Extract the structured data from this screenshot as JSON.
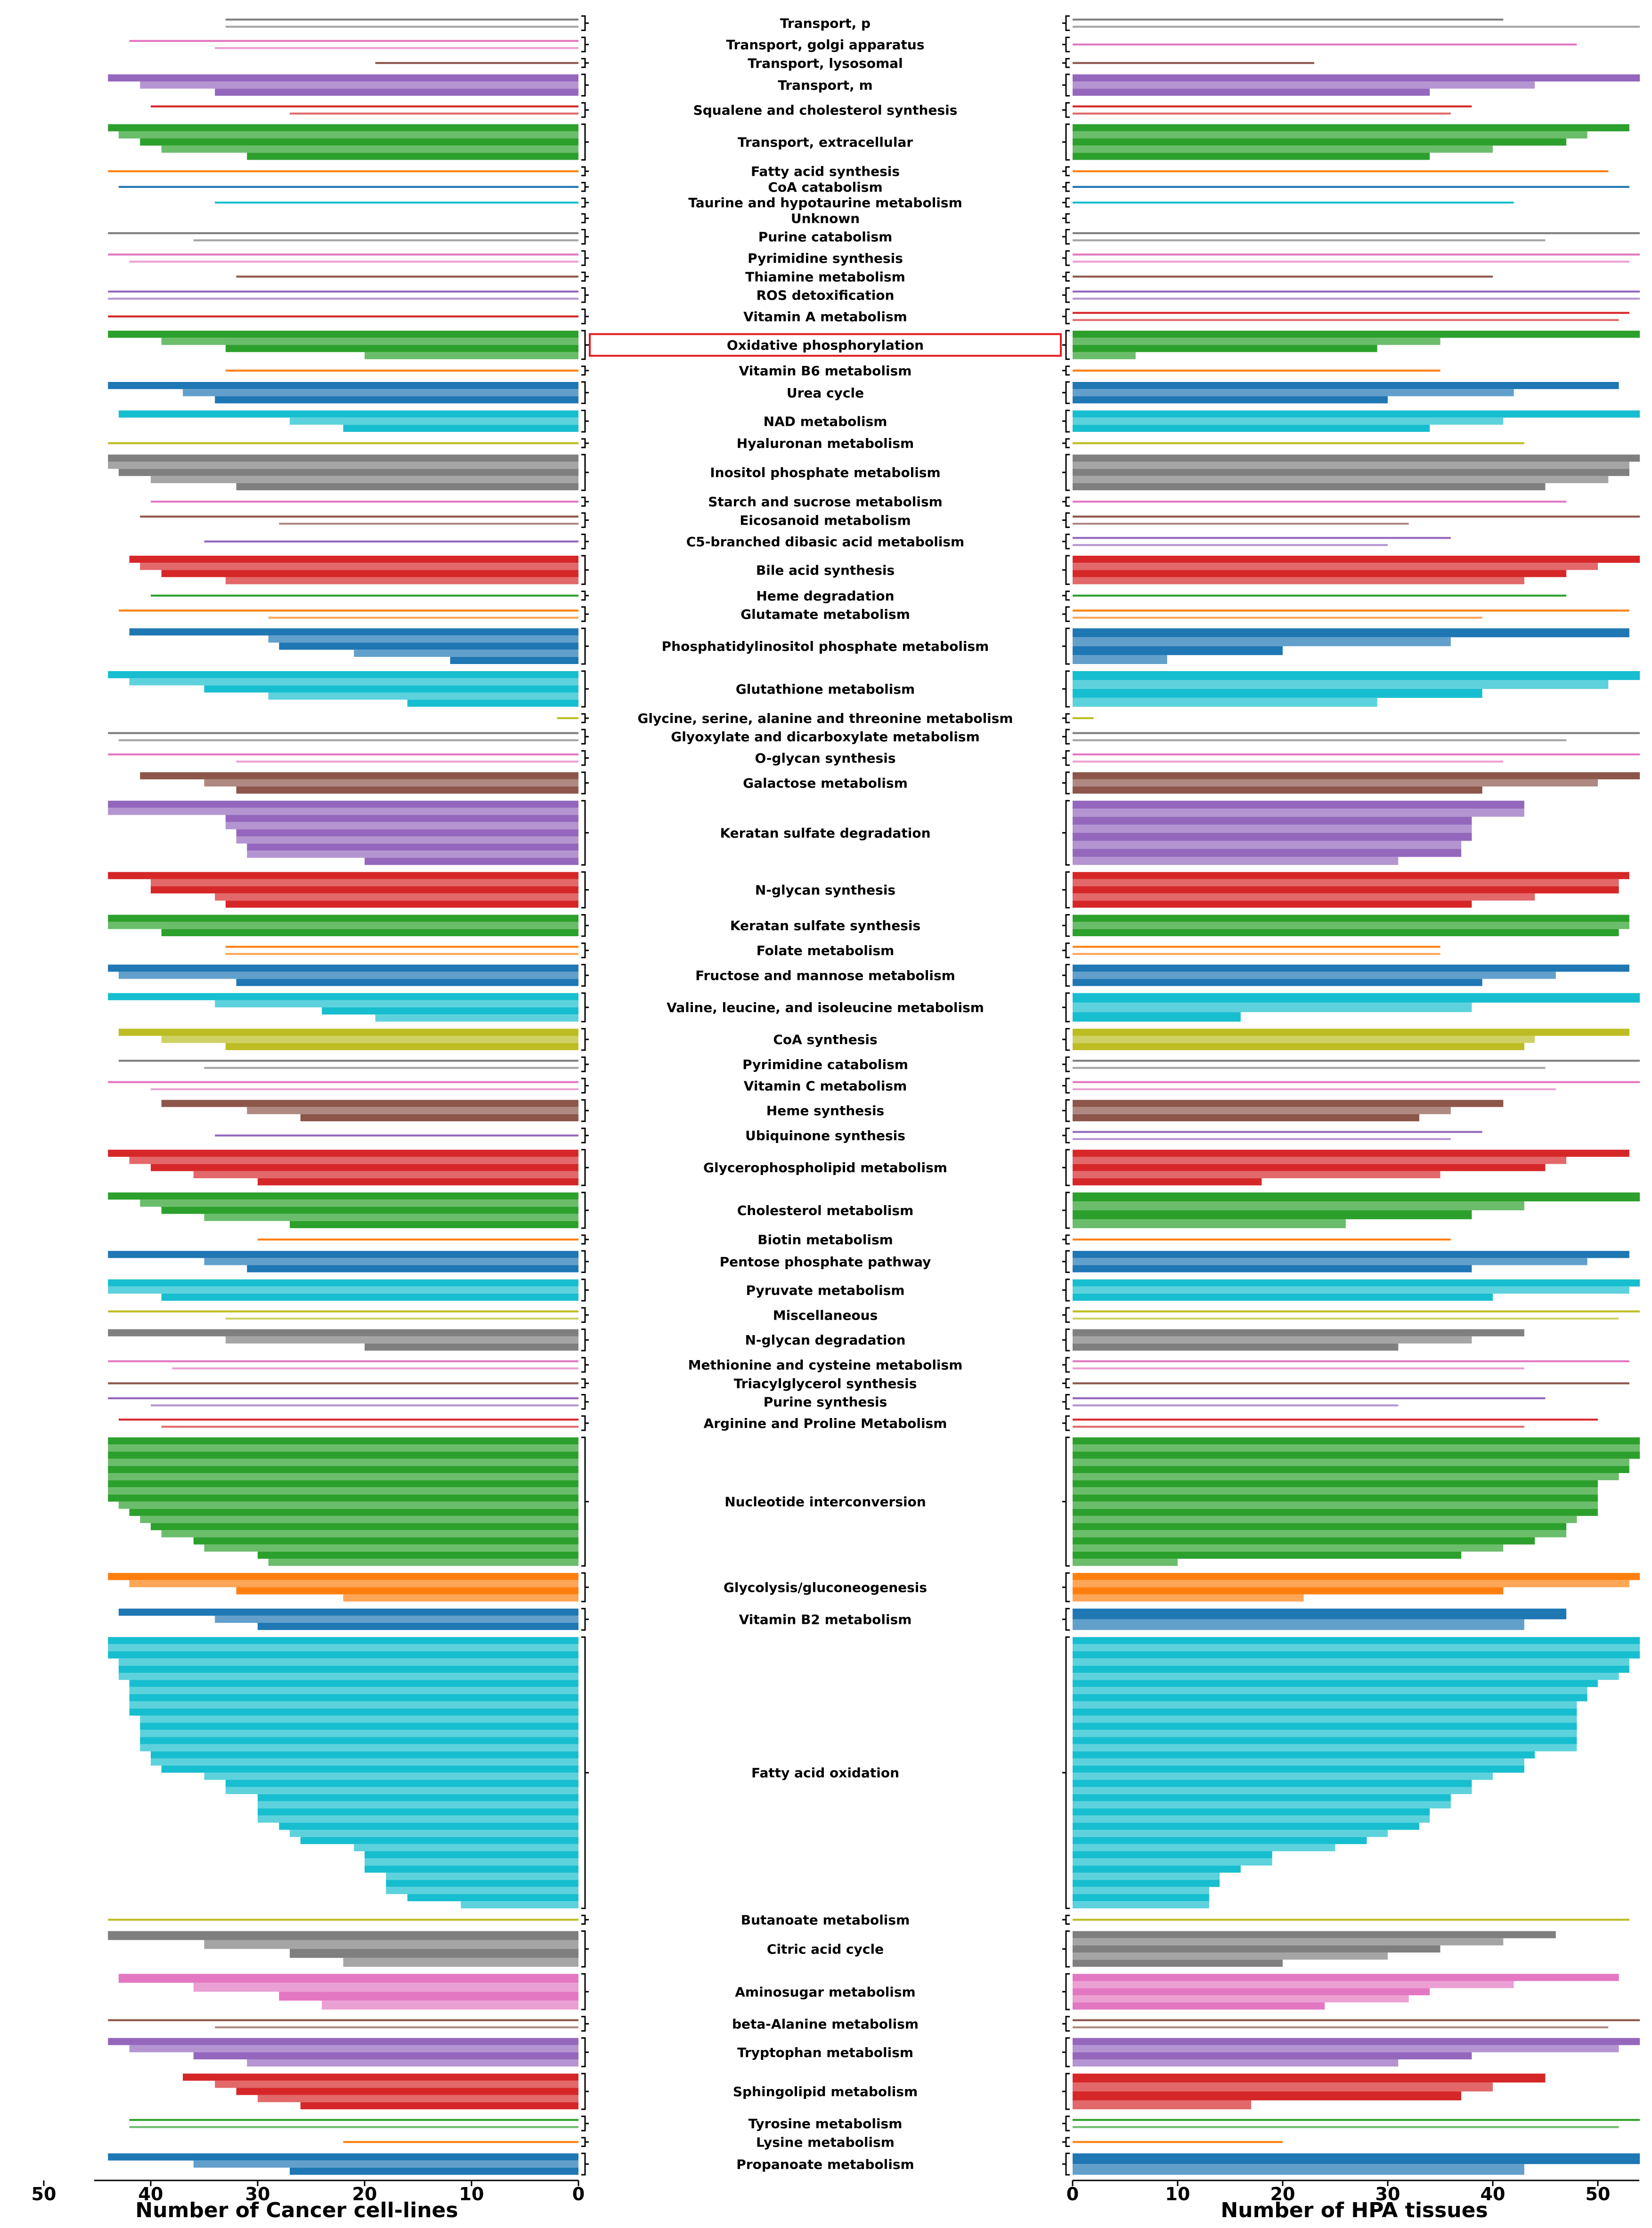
{
  "chart_data": {
    "type": "bar",
    "layout": "mirrored horizontal bar chart (butterfly), pathways on a shared central axis",
    "left_panel": {
      "xlabel": "Number of Cancer cell-lines",
      "xlim": [
        50,
        0
      ],
      "ticks": [
        "50",
        "40",
        "30",
        "20",
        "10",
        "0"
      ],
      "tick_values": [
        50,
        40,
        30,
        20,
        10,
        0
      ]
    },
    "right_panel": {
      "xlabel": "Number of HPA tissues",
      "xlim": [
        0,
        54
      ],
      "ticks": [
        "0",
        "10",
        "20",
        "30",
        "40",
        "50"
      ],
      "tick_values": [
        0,
        10,
        20,
        30,
        40,
        50
      ]
    },
    "highlighted": "Oxidative phosphorylation",
    "highlight_color": "#e41a1c",
    "palette": [
      "#7f7f7f",
      "#e377c2",
      "#8c564b",
      "#9467bd",
      "#d62728",
      "#2ca02c",
      "#ff7f0e",
      "#1f77b4",
      "#17becf",
      "#bcbd22"
    ],
    "groups": [
      {
        "name": "Transport, p",
        "color": "#7f7f7f",
        "cancer": [
          33,
          33
        ],
        "hpa": [
          41,
          54
        ]
      },
      {
        "name": "Transport, golgi apparatus",
        "color": "#e377c2",
        "cancer": [
          42,
          34
        ],
        "hpa": [
          48
        ]
      },
      {
        "name": "Transport, lysosomal",
        "color": "#8c564b",
        "cancer": [
          19
        ],
        "hpa": [
          23
        ]
      },
      {
        "name": "Transport, m",
        "color": "#9467bd",
        "cancer": [
          44,
          41,
          34
        ],
        "hpa": [
          54,
          44,
          34
        ]
      },
      {
        "name": "Squalene and cholesterol synthesis",
        "color": "#d62728",
        "cancer": [
          40,
          27
        ],
        "hpa": [
          38,
          36
        ]
      },
      {
        "name": "Transport, extracellular",
        "color": "#2ca02c",
        "cancer": [
          44,
          43,
          41,
          39,
          31
        ],
        "hpa": [
          53,
          49,
          47,
          40,
          34
        ]
      },
      {
        "name": "Fatty acid synthesis",
        "color": "#ff7f0e",
        "cancer": [
          44
        ],
        "hpa": [
          51
        ]
      },
      {
        "name": "CoA catabolism",
        "color": "#1f77b4",
        "cancer": [
          43
        ],
        "hpa": [
          53
        ]
      },
      {
        "name": "Taurine and hypotaurine metabolism",
        "color": "#17becf",
        "cancer": [
          34
        ],
        "hpa": [
          42
        ]
      },
      {
        "name": "Unknown",
        "color": "#bcbd22",
        "cancer": [],
        "hpa": []
      },
      {
        "name": "Purine catabolism",
        "color": "#7f7f7f",
        "cancer": [
          44,
          36
        ],
        "hpa": [
          54,
          45
        ]
      },
      {
        "name": "Pyrimidine synthesis",
        "color": "#e377c2",
        "cancer": [
          44,
          42
        ],
        "hpa": [
          54,
          53
        ]
      },
      {
        "name": "Thiamine metabolism",
        "color": "#8c564b",
        "cancer": [
          32
        ],
        "hpa": [
          40
        ]
      },
      {
        "name": "ROS detoxification",
        "color": "#9467bd",
        "cancer": [
          44,
          44
        ],
        "hpa": [
          54,
          54
        ]
      },
      {
        "name": "Vitamin A metabolism",
        "color": "#d62728",
        "cancer": [
          44
        ],
        "hpa": [
          53,
          52
        ]
      },
      {
        "name": "Oxidative phosphorylation",
        "color": "#2ca02c",
        "cancer": [
          44,
          39,
          33,
          20
        ],
        "hpa": [
          54,
          35,
          29,
          6
        ]
      },
      {
        "name": "Vitamin B6 metabolism",
        "color": "#ff7f0e",
        "cancer": [
          33
        ],
        "hpa": [
          35
        ]
      },
      {
        "name": "Urea cycle",
        "color": "#1f77b4",
        "cancer": [
          44,
          37,
          34
        ],
        "hpa": [
          52,
          42,
          30
        ]
      },
      {
        "name": "NAD metabolism",
        "color": "#17becf",
        "cancer": [
          43,
          27,
          22
        ],
        "hpa": [
          54,
          41,
          34
        ]
      },
      {
        "name": "Hyaluronan metabolism",
        "color": "#bcbd22",
        "cancer": [
          44
        ],
        "hpa": [
          43
        ]
      },
      {
        "name": "Inositol phosphate metabolism",
        "color": "#7f7f7f",
        "cancer": [
          44,
          44,
          43,
          40,
          32
        ],
        "hpa": [
          54,
          53,
          53,
          51,
          45
        ]
      },
      {
        "name": "Starch and sucrose metabolism",
        "color": "#e377c2",
        "cancer": [
          40
        ],
        "hpa": [
          47
        ]
      },
      {
        "name": "Eicosanoid metabolism",
        "color": "#8c564b",
        "cancer": [
          41,
          28
        ],
        "hpa": [
          54,
          32
        ]
      },
      {
        "name": "C5-branched dibasic acid metabolism",
        "color": "#9467bd",
        "cancer": [
          35
        ],
        "hpa": [
          36,
          30
        ]
      },
      {
        "name": "Bile acid synthesis",
        "color": "#d62728",
        "cancer": [
          42,
          41,
          39,
          33
        ],
        "hpa": [
          54,
          50,
          47,
          43
        ]
      },
      {
        "name": "Heme degradation",
        "color": "#2ca02c",
        "cancer": [
          40
        ],
        "hpa": [
          47
        ]
      },
      {
        "name": "Glutamate metabolism",
        "color": "#ff7f0e",
        "cancer": [
          43,
          29
        ],
        "hpa": [
          53,
          39
        ]
      },
      {
        "name": "Phosphatidylinositol phosphate metabolism",
        "color": "#1f77b4",
        "cancer": [
          42,
          29,
          28,
          21,
          12
        ],
        "hpa": [
          53,
          36,
          20,
          9
        ]
      },
      {
        "name": "Glutathione metabolism",
        "color": "#17becf",
        "cancer": [
          44,
          42,
          35,
          29,
          16
        ],
        "hpa": [
          54,
          51,
          39,
          29
        ]
      },
      {
        "name": "Glycine, serine, alanine and threonine metabolism",
        "color": "#bcbd22",
        "cancer": [
          2
        ],
        "hpa": [
          2
        ]
      },
      {
        "name": "Glyoxylate and dicarboxylate metabolism",
        "color": "#7f7f7f",
        "cancer": [
          44,
          43
        ],
        "hpa": [
          54,
          47
        ]
      },
      {
        "name": "O-glycan synthesis",
        "color": "#e377c2",
        "cancer": [
          44,
          32
        ],
        "hpa": [
          54,
          41
        ]
      },
      {
        "name": "Galactose metabolism",
        "color": "#8c564b",
        "cancer": [
          41,
          35,
          32
        ],
        "hpa": [
          54,
          50,
          39
        ]
      },
      {
        "name": "Keratan sulfate degradation",
        "color": "#9467bd",
        "cancer": [
          44,
          44,
          33,
          33,
          32,
          32,
          31,
          31,
          20
        ],
        "hpa": [
          43,
          43,
          38,
          38,
          38,
          37,
          37,
          31
        ]
      },
      {
        "name": "N-glycan synthesis",
        "color": "#d62728",
        "cancer": [
          44,
          40,
          40,
          34,
          33
        ],
        "hpa": [
          53,
          52,
          52,
          44,
          38
        ]
      },
      {
        "name": "Keratan sulfate synthesis",
        "color": "#2ca02c",
        "cancer": [
          44,
          44,
          39
        ],
        "hpa": [
          53,
          53,
          52
        ]
      },
      {
        "name": "Folate metabolism",
        "color": "#ff7f0e",
        "cancer": [
          33,
          33
        ],
        "hpa": [
          35,
          35
        ]
      },
      {
        "name": "Fructose and mannose metabolism",
        "color": "#1f77b4",
        "cancer": [
          44,
          43,
          32
        ],
        "hpa": [
          53,
          46,
          39
        ]
      },
      {
        "name": "Valine, leucine, and isoleucine metabolism",
        "color": "#17becf",
        "cancer": [
          44,
          34,
          24,
          19
        ],
        "hpa": [
          54,
          38,
          16
        ]
      },
      {
        "name": "CoA synthesis",
        "color": "#bcbd22",
        "cancer": [
          43,
          39,
          33
        ],
        "hpa": [
          53,
          44,
          43
        ]
      },
      {
        "name": "Pyrimidine catabolism",
        "color": "#7f7f7f",
        "cancer": [
          43,
          35
        ],
        "hpa": [
          54,
          45
        ]
      },
      {
        "name": "Vitamin C metabolism",
        "color": "#e377c2",
        "cancer": [
          44,
          40
        ],
        "hpa": [
          54,
          46
        ]
      },
      {
        "name": "Heme synthesis",
        "color": "#8c564b",
        "cancer": [
          39,
          31,
          26
        ],
        "hpa": [
          41,
          36,
          33
        ]
      },
      {
        "name": "Ubiquinone synthesis",
        "color": "#9467bd",
        "cancer": [
          34
        ],
        "hpa": [
          39,
          36
        ]
      },
      {
        "name": "Glycerophospholipid metabolism",
        "color": "#d62728",
        "cancer": [
          44,
          42,
          40,
          36,
          30
        ],
        "hpa": [
          53,
          47,
          45,
          35,
          18
        ]
      },
      {
        "name": "Cholesterol metabolism",
        "color": "#2ca02c",
        "cancer": [
          44,
          41,
          39,
          35,
          27
        ],
        "hpa": [
          54,
          43,
          38,
          26
        ]
      },
      {
        "name": "Biotin metabolism",
        "color": "#ff7f0e",
        "cancer": [
          30
        ],
        "hpa": [
          36
        ]
      },
      {
        "name": "Pentose phosphate pathway",
        "color": "#1f77b4",
        "cancer": [
          44,
          35,
          31
        ],
        "hpa": [
          53,
          49,
          38
        ]
      },
      {
        "name": "Pyruvate metabolism",
        "color": "#17becf",
        "cancer": [
          44,
          44,
          39
        ],
        "hpa": [
          54,
          53,
          40
        ]
      },
      {
        "name": "Miscellaneous",
        "color": "#bcbd22",
        "cancer": [
          44,
          33
        ],
        "hpa": [
          54,
          52
        ]
      },
      {
        "name": "N-glycan degradation",
        "color": "#7f7f7f",
        "cancer": [
          44,
          33,
          20
        ],
        "hpa": [
          43,
          38,
          31
        ]
      },
      {
        "name": "Methionine and cysteine metabolism",
        "color": "#e377c2",
        "cancer": [
          44,
          38
        ],
        "hpa": [
          53,
          43
        ]
      },
      {
        "name": "Triacylglycerol synthesis",
        "color": "#8c564b",
        "cancer": [
          44
        ],
        "hpa": [
          53
        ]
      },
      {
        "name": "Purine synthesis",
        "color": "#9467bd",
        "cancer": [
          44,
          40
        ],
        "hpa": [
          45,
          31
        ]
      },
      {
        "name": "Arginine and Proline Metabolism",
        "color": "#d62728",
        "cancer": [
          43,
          39
        ],
        "hpa": [
          50,
          43
        ]
      },
      {
        "name": "Nucleotide interconversion",
        "color": "#2ca02c",
        "cancer": [
          44,
          44,
          44,
          44,
          44,
          44,
          44,
          44,
          44,
          43,
          42,
          41,
          40,
          39,
          36,
          35,
          30,
          29
        ],
        "hpa": [
          54,
          54,
          54,
          53,
          53,
          52,
          50,
          50,
          50,
          50,
          50,
          48,
          47,
          47,
          44,
          41,
          37,
          10
        ]
      },
      {
        "name": "Glycolysis/gluconeogenesis",
        "color": "#ff7f0e",
        "cancer": [
          44,
          42,
          32,
          22
        ],
        "hpa": [
          54,
          53,
          41,
          22
        ]
      },
      {
        "name": "Vitamin B2 metabolism",
        "color": "#1f77b4",
        "cancer": [
          43,
          34,
          30
        ],
        "hpa": [
          47,
          43
        ]
      },
      {
        "name": "Fatty acid oxidation",
        "color": "#17becf",
        "cancer": [
          44,
          44,
          44,
          43,
          43,
          43,
          42,
          42,
          42,
          42,
          42,
          41,
          41,
          41,
          41,
          41,
          40,
          40,
          39,
          35,
          33,
          33,
          30,
          30,
          30,
          30,
          28,
          27,
          26,
          21,
          20,
          20,
          20,
          18,
          18,
          18,
          16,
          11
        ],
        "hpa": [
          54,
          54,
          54,
          53,
          53,
          52,
          50,
          49,
          49,
          48,
          48,
          48,
          48,
          48,
          48,
          48,
          44,
          43,
          43,
          40,
          38,
          38,
          36,
          36,
          34,
          34,
          33,
          30,
          28,
          25,
          19,
          19,
          16,
          14,
          14,
          13,
          13,
          13
        ]
      },
      {
        "name": "Butanoate metabolism",
        "color": "#bcbd22",
        "cancer": [
          44
        ],
        "hpa": [
          53
        ]
      },
      {
        "name": "Citric acid cycle",
        "color": "#7f7f7f",
        "cancer": [
          44,
          35,
          27,
          22
        ],
        "hpa": [
          46,
          41,
          35,
          30,
          20
        ]
      },
      {
        "name": "Aminosugar metabolism",
        "color": "#e377c2",
        "cancer": [
          43,
          36,
          28,
          24
        ],
        "hpa": [
          52,
          42,
          34,
          32,
          24
        ]
      },
      {
        "name": "beta-Alanine metabolism",
        "color": "#8c564b",
        "cancer": [
          44,
          34
        ],
        "hpa": [
          54,
          51
        ]
      },
      {
        "name": "Tryptophan metabolism",
        "color": "#9467bd",
        "cancer": [
          44,
          42,
          36,
          31
        ],
        "hpa": [
          54,
          52,
          38,
          31
        ]
      },
      {
        "name": "Sphingolipid metabolism",
        "color": "#d62728",
        "cancer": [
          37,
          34,
          32,
          30,
          26
        ],
        "hpa": [
          45,
          40,
          37,
          17
        ]
      },
      {
        "name": "Tyrosine metabolism",
        "color": "#2ca02c",
        "cancer": [
          42,
          42
        ],
        "hpa": [
          54,
          52
        ]
      },
      {
        "name": "Lysine metabolism",
        "color": "#ff7f0e",
        "cancer": [
          22
        ],
        "hpa": [
          20
        ]
      },
      {
        "name": "Propanoate metabolism",
        "color": "#1f77b4",
        "cancer": [
          44,
          36,
          27
        ],
        "hpa": [
          54,
          43
        ]
      }
    ]
  }
}
